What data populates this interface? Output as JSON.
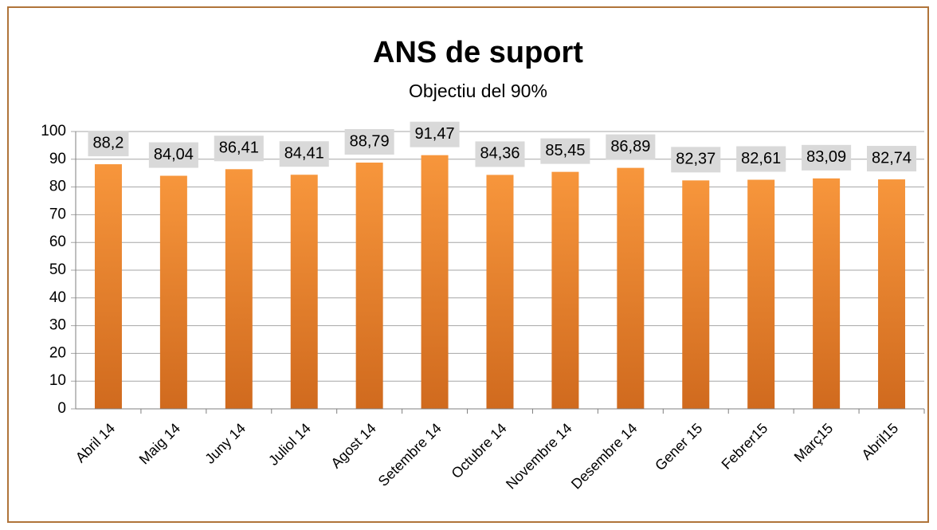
{
  "chart_data": {
    "type": "bar",
    "title": "ANS de suport",
    "subtitle": "Objectiu del 90%",
    "categories": [
      "Abril 14",
      "Maig 14",
      "Juny 14",
      "Juliol 14",
      "Agost 14",
      "Setembre 14",
      "Octubre 14",
      "Novembre 14",
      "Desembre 14",
      "Gener 15",
      "Febrer15",
      "Març15",
      "Abril15"
    ],
    "values": [
      88.2,
      84.04,
      86.41,
      84.41,
      88.79,
      91.47,
      84.36,
      85.45,
      86.89,
      82.37,
      82.61,
      83.09,
      82.74
    ],
    "value_labels": [
      "88,2",
      "84,04",
      "86,41",
      "84,41",
      "88,79",
      "91,47",
      "84,36",
      "85,45",
      "86,89",
      "82,37",
      "82,61",
      "83,09",
      "82,74"
    ],
    "color": "#f39237",
    "ylim": [
      0,
      100
    ],
    "yticks": [
      0,
      10,
      20,
      30,
      40,
      50,
      60,
      70,
      80,
      90,
      100
    ],
    "grid": true
  }
}
